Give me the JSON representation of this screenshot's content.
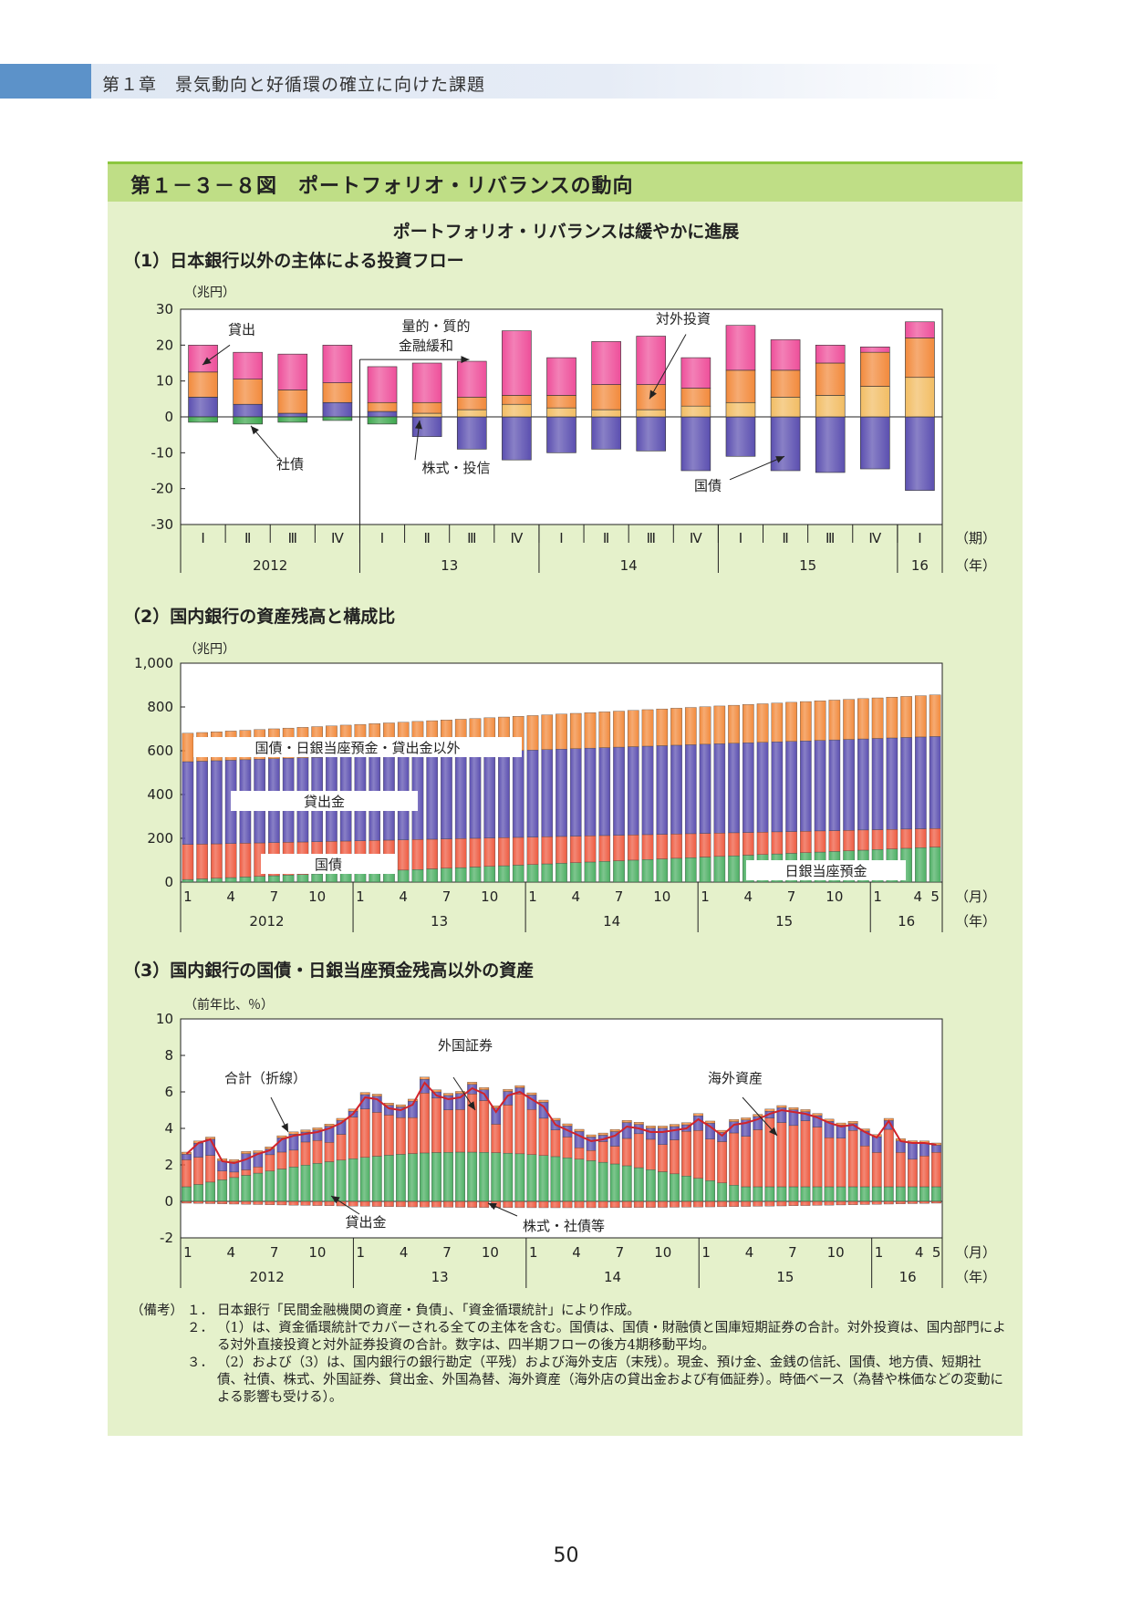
{
  "header": {
    "chapter": "第１章　景気動向と好循環の確立に向けた課題"
  },
  "figure": {
    "title": "第１－３－８図　ポートフォリオ・リバランスの動向",
    "subtitle": "ポートフォリオ・リバランスは緩やかに進展"
  },
  "colors": {
    "bg": "#e5f1cb",
    "title_bar": "#bfde86",
    "pink": "#ee4f9a",
    "orange": "#f28a3c",
    "purple": "#5b4fb0",
    "green": "#4caf63",
    "red_line": "#d2232a"
  },
  "chart_data": [
    {
      "type": "bar",
      "stacked": true,
      "section_title": "（1）日本銀行以外の主体による投資フロー",
      "unit_label": "（兆円）",
      "ylim": [
        -30,
        30
      ],
      "yticks": [
        30,
        20,
        10,
        0,
        -10,
        -20,
        -30
      ],
      "categories": [
        "Ⅰ",
        "Ⅱ",
        "Ⅲ",
        "Ⅳ",
        "Ⅰ",
        "Ⅱ",
        "Ⅲ",
        "Ⅳ",
        "Ⅰ",
        "Ⅱ",
        "Ⅲ",
        "Ⅳ",
        "Ⅰ",
        "Ⅱ",
        "Ⅲ",
        "Ⅳ",
        "Ⅰ"
      ],
      "category_unit": "（期）",
      "years": [
        "2012",
        "13",
        "14",
        "15",
        "16"
      ],
      "year_unit": "（年）",
      "series": [
        {
          "name": "国債",
          "color": "#5b4fb0",
          "values": [
            5.5,
            3.5,
            1,
            4,
            1.5,
            -5.5,
            -9,
            -12,
            -10,
            -9,
            -9.5,
            -15,
            -11,
            -15,
            -15.5,
            -14.5,
            -20.5
          ]
        },
        {
          "name": "株式・投信",
          "color": "#f2bd64",
          "values": [
            0,
            0,
            0,
            0,
            0,
            1,
            2,
            3.5,
            2.5,
            2,
            2,
            3,
            4,
            5.5,
            6,
            8.5,
            11
          ]
        },
        {
          "name": "対外投資",
          "color": "#f28a3c",
          "values": [
            7,
            7,
            6.5,
            5.5,
            2.5,
            3,
            3.5,
            2.5,
            3.5,
            7,
            7,
            5,
            9,
            7.5,
            9,
            9.5,
            11
          ]
        },
        {
          "name": "社債",
          "color": "#3fa84f",
          "values": [
            -1.5,
            -2,
            -1.5,
            -1,
            -2,
            0,
            0,
            0,
            0,
            0,
            0,
            0,
            0,
            0,
            0,
            0,
            0
          ]
        },
        {
          "name": "貸出",
          "color": "#ee4f9a",
          "values": [
            7.5,
            7.5,
            10,
            10.5,
            10,
            11,
            10,
            18,
            10.5,
            12,
            13.5,
            8.5,
            12.5,
            8.5,
            5,
            1.5,
            4.5
          ]
        }
      ],
      "annotations": [
        "貸出",
        "社債",
        "量的・質的",
        "金融緩和",
        "株式・投信",
        "対外投資",
        "国債"
      ]
    },
    {
      "type": "bar",
      "stacked": true,
      "section_title": "（2）国内銀行の資産残高と構成比",
      "unit_label": "（兆円）",
      "ylim": [
        0,
        1000
      ],
      "yticks": [
        "1,000",
        "800",
        "600",
        "400",
        "200",
        "0"
      ],
      "months_label": [
        "1",
        "4",
        "7",
        "10"
      ],
      "last_months": [
        "4",
        "5"
      ],
      "month_unit": "（月）",
      "years": [
        "2012",
        "13",
        "14",
        "15",
        "16"
      ],
      "year_unit": "（年）",
      "totals_start": 680,
      "totals_end": 855,
      "series": [
        {
          "name": "日銀当座預金",
          "color": "#4caf63",
          "start": 12,
          "end": 160
        },
        {
          "name": "国債",
          "color": "#ee5a40",
          "start": 160,
          "end": 85
        },
        {
          "name": "貸出金",
          "color": "#5b4fb0",
          "start": 378,
          "end": 420
        },
        {
          "name": "国債・日銀当座預金・貸出金以外",
          "color": "#f28a3c",
          "start": 130,
          "end": 190
        }
      ]
    },
    {
      "type": "bar",
      "stacked": true,
      "section_title": "（3）国内銀行の国債・日銀当座預金残高以外の資産",
      "unit_label": "（前年比、％）",
      "ylim": [
        -2,
        10
      ],
      "yticks": [
        10,
        8,
        6,
        4,
        2,
        0,
        -2
      ],
      "months_label": [
        "1",
        "4",
        "7",
        "10"
      ],
      "last_months": [
        "4",
        "5"
      ],
      "month_unit": "（月）",
      "years": [
        "2012",
        "13",
        "14",
        "15",
        "16"
      ],
      "year_unit": "（年）",
      "total_line": [
        2.6,
        3.2,
        3.4,
        2.2,
        2.1,
        2.3,
        2.6,
        2.8,
        3.4,
        3.6,
        3.7,
        3.8,
        4.0,
        4.3,
        4.8,
        5.7,
        5.6,
        5.1,
        5.0,
        5.3,
        6.5,
        5.8,
        5.6,
        5.7,
        6.2,
        5.9,
        4.9,
        5.8,
        6.0,
        5.6,
        5.2,
        4.2,
        3.9,
        3.6,
        3.3,
        3.4,
        3.6,
        4.1,
        4.0,
        3.8,
        3.8,
        3.9,
        4.0,
        4.5,
        4.1,
        3.6,
        4.2,
        4.3,
        4.5,
        4.8,
        5.0,
        4.9,
        4.8,
        4.6,
        4.3,
        4.1,
        4.2,
        3.8,
        3.5,
        4.4,
        3.3,
        3.2,
        3.2,
        3.1
      ],
      "series": [
        {
          "name": "貸出金",
          "color": "#4caf63"
        },
        {
          "name": "株式・社債等",
          "color": "#ee5a40"
        },
        {
          "name": "外国証券",
          "color": "#5b4fb0"
        },
        {
          "name": "海外資産",
          "color": "#f28a3c"
        },
        {
          "name": "合計（折線）",
          "color": "#d2232a"
        }
      ],
      "annotations": [
        "外国証券",
        "合計（折線）",
        "海外資産",
        "貸出金",
        "株式・社債等"
      ]
    }
  ],
  "notes": {
    "label": "（備考）",
    "items": [
      {
        "num": "１．",
        "text": "日本銀行「民間金融機関の資産・負債」、「資金循環統計」により作成。"
      },
      {
        "num": "２．",
        "text": "（1）は、資金循環統計でカバーされる全ての主体を含む。国債は、国債・財融債と国庫短期証券の合計。対外投資は、国内部門による対外直接投資と対外証券投資の合計。数字は、四半期フローの後方4期移動平均。"
      },
      {
        "num": "３．",
        "text": "（2）および（3）は、国内銀行の銀行勘定（平残）および海外支店（末残）。現金、預け金、金銭の信託、国債、地方債、短期社債、社債、株式、外国証券、貸出金、外国為替、海外資産（海外店の貸出金および有価証券）。時価ベース（為替や株価などの変動による影響も受ける）。"
      }
    ]
  },
  "page_number": "50"
}
